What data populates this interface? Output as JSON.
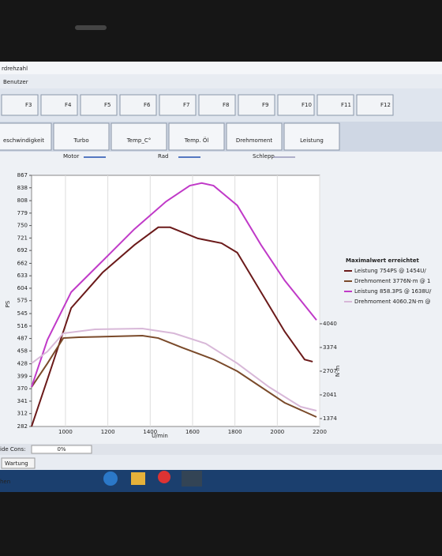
{
  "ui": {
    "window_title": "rdrehzahl",
    "menu": "Benutzer",
    "fkeys": [
      "F3",
      "F4",
      "F5",
      "F6",
      "F7",
      "F8",
      "F9",
      "F10",
      "F11",
      "F12"
    ],
    "tabs": [
      "eschwindigkeit",
      "Turbo",
      "Temp_C°",
      "Temp. Öl",
      "Drehmoment",
      "Leistung"
    ],
    "legend_top": [
      "Motor",
      "Rad",
      "Schlepp"
    ],
    "status_label": "ide Cons:",
    "status_value": "0%",
    "wartung": "Wartung",
    "bottom": "hen"
  },
  "chart_data": {
    "type": "line",
    "legend_title": "Maximalwert erreichtet",
    "x_label": "U/min",
    "y_label": "PS",
    "y2_label": "N·m",
    "xlim": [
      840,
      2200
    ],
    "xticks": [
      1000,
      1200,
      1400,
      1600,
      1800,
      2000,
      2200
    ],
    "ylim": [
      282,
      867
    ],
    "yticks": [
      282,
      312,
      341,
      370,
      399,
      428,
      458,
      487,
      516,
      545,
      575,
      604,
      633,
      662,
      692,
      721,
      750,
      779,
      808,
      838,
      867
    ],
    "y2lim": [
      1152,
      8214
    ],
    "y2ticks": [
      1374,
      2041,
      2707,
      3374,
      4040
    ],
    "grid": true,
    "series": [
      {
        "name": "Leistung 754PS @ 1454U/",
        "color": "#6b1a1a",
        "x": [
          840,
          915,
          1027,
          1176,
          1326,
          1438,
          1494,
          1625,
          1737,
          1811,
          1923,
          2035,
          2129,
          2167
        ],
        "values": [
          282,
          392,
          558,
          641,
          705,
          746,
          746,
          720,
          709,
          687,
          595,
          503,
          438,
          433
        ]
      },
      {
        "name": "Drehmoment 3776N·m @ 1",
        "color": "#7a4a2a",
        "axis": "y2",
        "x": [
          840,
          915,
          990,
          1064,
          1363,
          1438,
          1550,
          1699,
          1811,
          1923,
          2035,
          2185
        ],
        "values": [
          2262,
          2928,
          3638,
          3661,
          3705,
          3638,
          3372,
          3039,
          2706,
          2262,
          1818,
          1418
        ]
      },
      {
        "name": "Leistung 858.3PS @ 1638U/",
        "color": "#c03ac8",
        "x": [
          840,
          915,
          1027,
          1176,
          1326,
          1475,
          1587,
          1643,
          1699,
          1811,
          1923,
          2035,
          2185
        ],
        "values": [
          374,
          484,
          595,
          668,
          742,
          806,
          843,
          849,
          843,
          797,
          705,
          622,
          530
        ]
      },
      {
        "name": "Drehmoment 4060.2N·m @",
        "color": "#d8b8d8",
        "axis": "y2",
        "x": [
          840,
          915,
          990,
          1139,
          1363,
          1512,
          1662,
          1811,
          1961,
          2110,
          2185
        ],
        "values": [
          2928,
          3261,
          3772,
          3883,
          3905,
          3772,
          3483,
          2928,
          2262,
          1707,
          1596
        ]
      }
    ]
  }
}
